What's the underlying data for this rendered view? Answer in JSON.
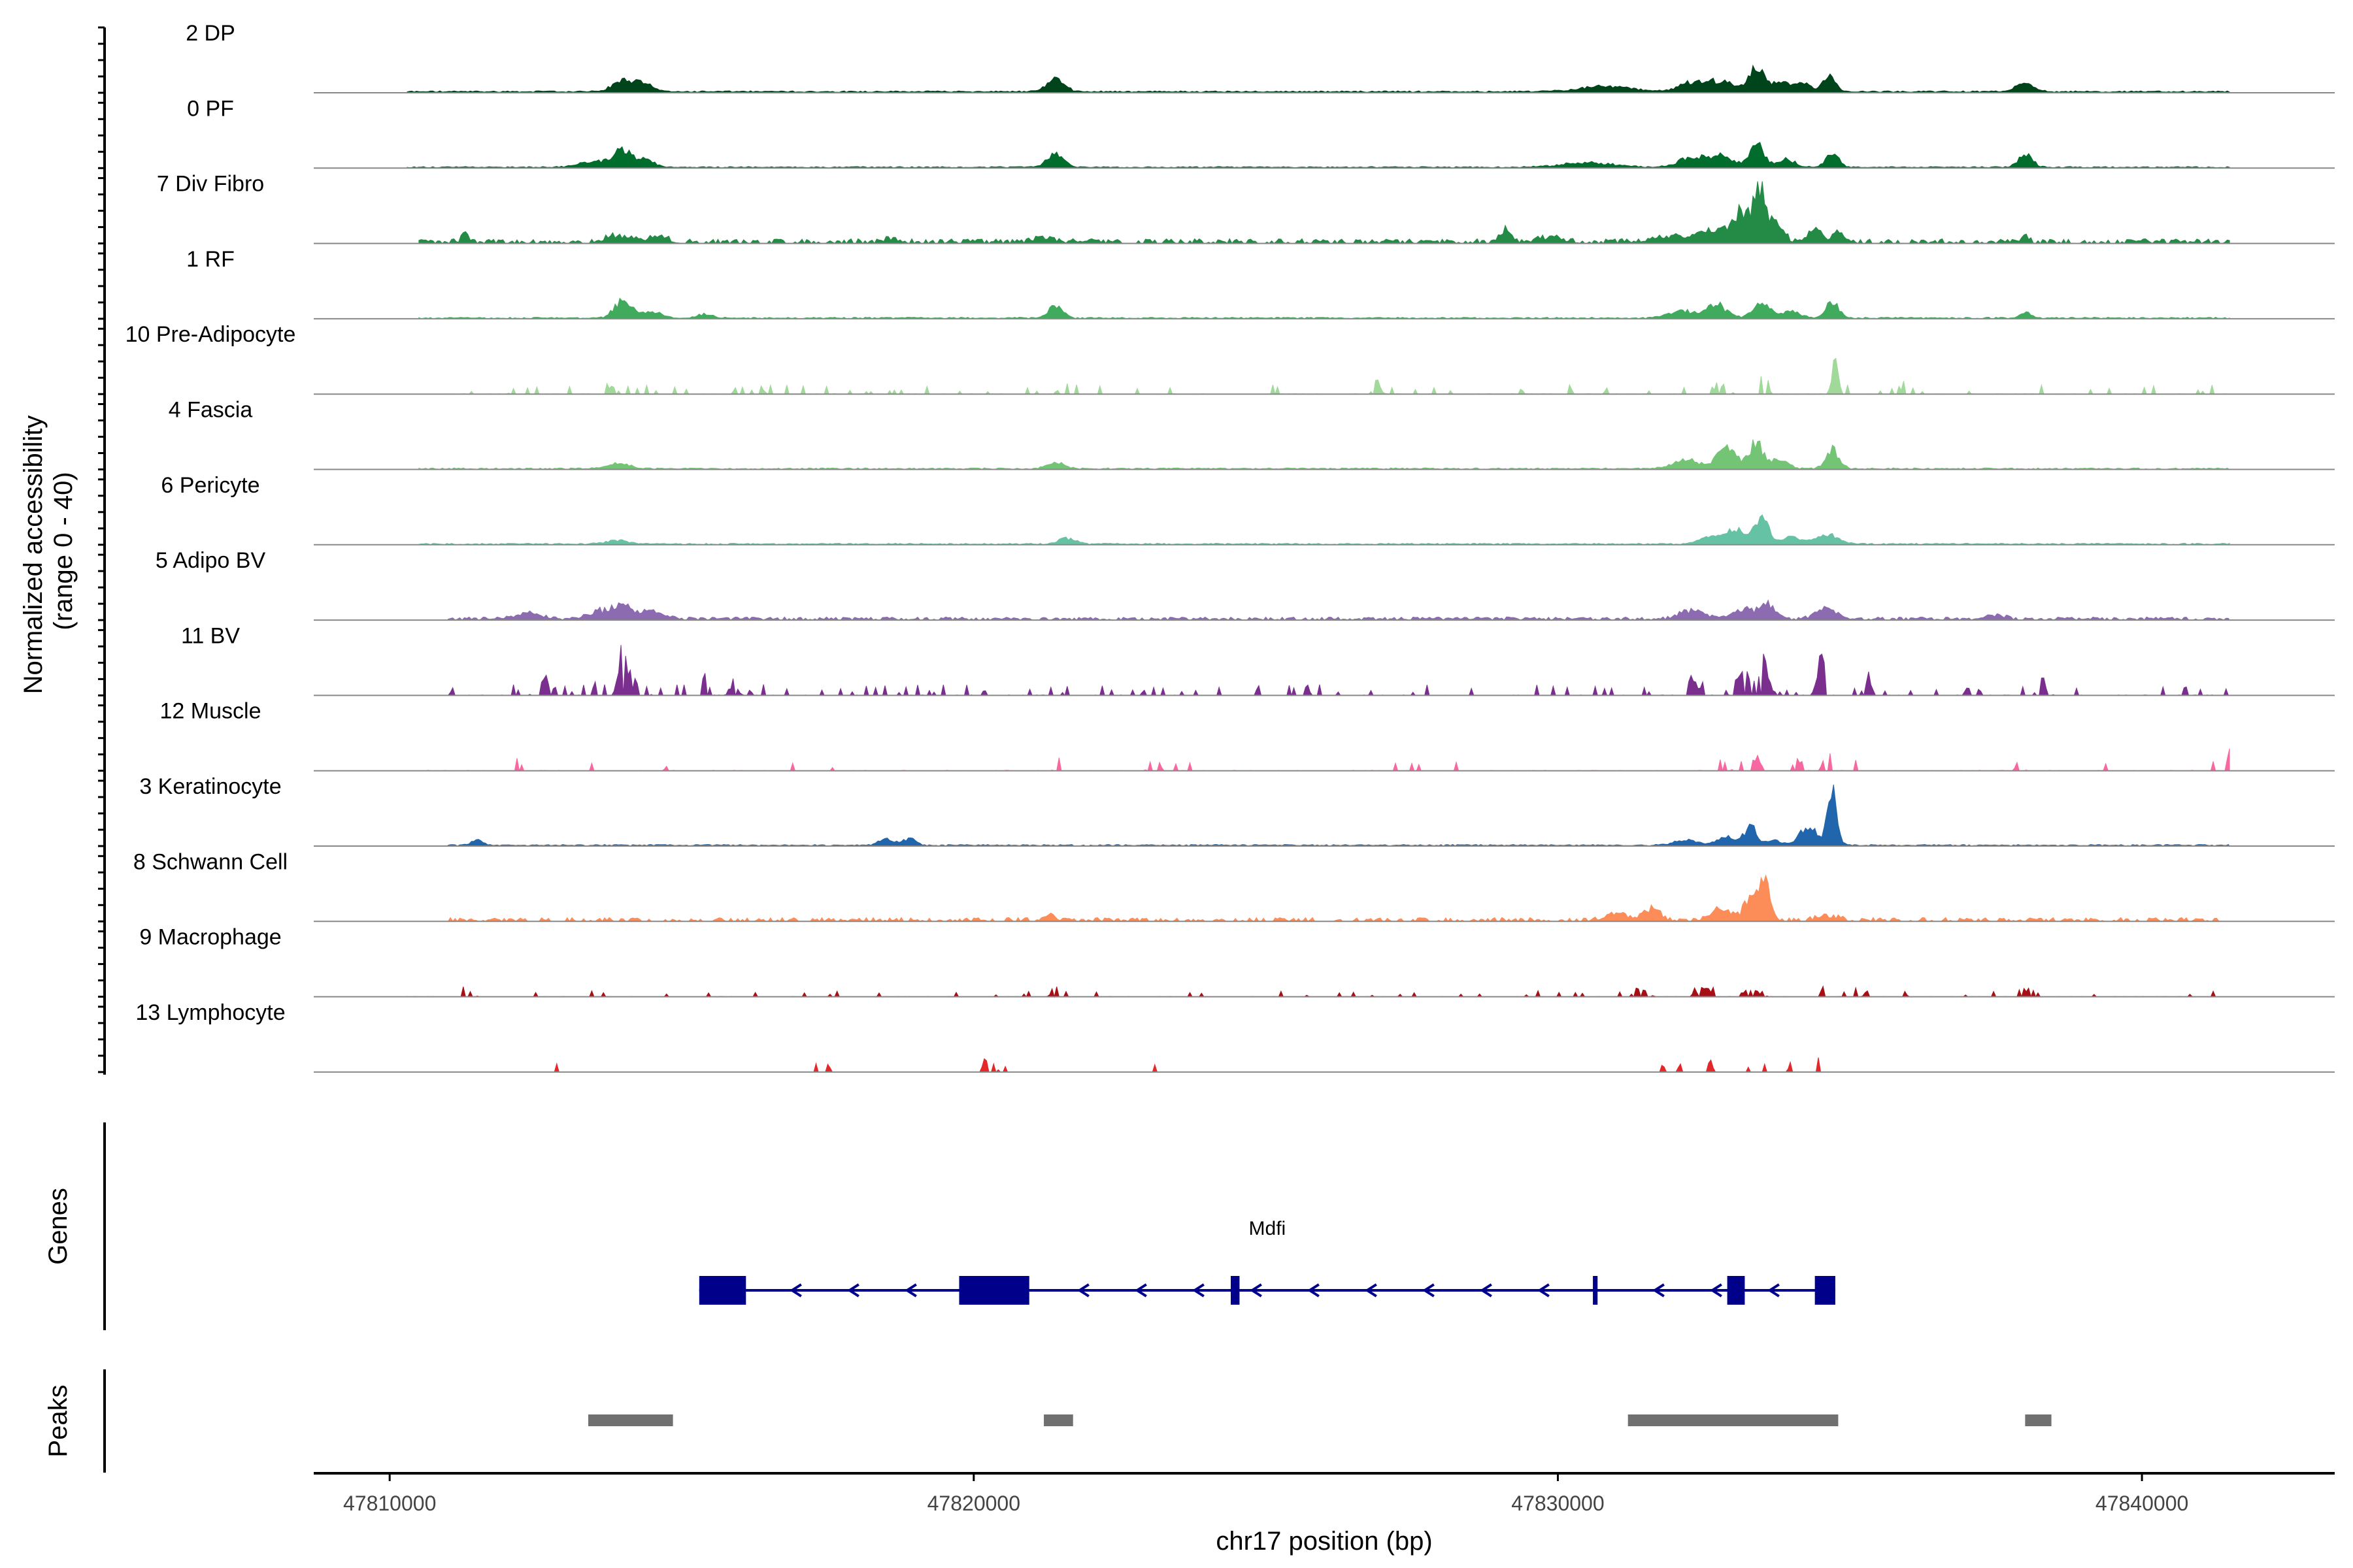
{
  "chart_data": {
    "type": "area",
    "panels": {
      "coverage_ylabel_line1": "Normalized accessibility",
      "coverage_ylabel_line2": "(range 0 - 40)",
      "genes_ylabel": "Genes",
      "peaks_ylabel": "Peaks"
    },
    "xlabel": "chr17 position (bp)",
    "xlim": [
      47808700,
      47843300
    ],
    "x_ticks": [
      47810000,
      47820000,
      47830000,
      47840000
    ],
    "x_tick_labels": [
      "47810000",
      "47820000",
      "47830000",
      "47840000"
    ],
    "ylim": [
      0,
      40
    ],
    "tracks": [
      {
        "name": "2 DP",
        "color": "#00441b",
        "noise": 0.025,
        "sparsity": 0.0,
        "extent": [
          47810300,
          47841500
        ],
        "peaks": [
          [
            47814000,
            0.2,
            170
          ],
          [
            47814350,
            0.12,
            150
          ],
          [
            47821400,
            0.2,
            150
          ],
          [
            47830800,
            0.08,
            450
          ],
          [
            47832300,
            0.14,
            220
          ],
          [
            47832800,
            0.16,
            220
          ],
          [
            47833400,
            0.4,
            120
          ],
          [
            47833800,
            0.14,
            160
          ],
          [
            47834200,
            0.12,
            140
          ],
          [
            47834650,
            0.24,
            110
          ],
          [
            47838000,
            0.13,
            150
          ]
        ]
      },
      {
        "name": "0 PF",
        "color": "#006d2c",
        "noise": 0.02,
        "sparsity": 0.0,
        "extent": [
          47810300,
          47841500
        ],
        "peaks": [
          [
            47813500,
            0.08,
            250
          ],
          [
            47814000,
            0.26,
            170
          ],
          [
            47814400,
            0.1,
            150
          ],
          [
            47821400,
            0.22,
            140
          ],
          [
            47830500,
            0.07,
            450
          ],
          [
            47832300,
            0.16,
            220
          ],
          [
            47832800,
            0.18,
            200
          ],
          [
            47833400,
            0.38,
            120
          ],
          [
            47833900,
            0.12,
            160
          ],
          [
            47834700,
            0.22,
            110
          ],
          [
            47838000,
            0.2,
            120
          ]
        ]
      },
      {
        "name": "7 Div Fibro",
        "color": "#238b45",
        "noise": 0.06,
        "sparsity": 0.35,
        "extent": [
          47810500,
          47841500
        ],
        "peaks": [
          [
            47811300,
            0.12,
            60
          ],
          [
            47813900,
            0.1,
            200
          ],
          [
            47814600,
            0.09,
            150
          ],
          [
            47818600,
            0.06,
            120
          ],
          [
            47821200,
            0.08,
            160
          ],
          [
            47829100,
            0.2,
            90
          ],
          [
            47829900,
            0.08,
            200
          ],
          [
            47831900,
            0.1,
            300
          ],
          [
            47832600,
            0.2,
            200
          ],
          [
            47833100,
            0.44,
            150
          ],
          [
            47833450,
            0.86,
            110
          ],
          [
            47833750,
            0.28,
            120
          ],
          [
            47834400,
            0.2,
            120
          ],
          [
            47834800,
            0.18,
            90
          ],
          [
            47838000,
            0.12,
            60
          ]
        ]
      },
      {
        "name": "1 RF",
        "color": "#41ab5d",
        "noise": 0.02,
        "sparsity": 0.15,
        "extent": [
          47810500,
          47841500
        ],
        "peaks": [
          [
            47814000,
            0.28,
            150
          ],
          [
            47814500,
            0.1,
            150
          ],
          [
            47815400,
            0.06,
            120
          ],
          [
            47821400,
            0.18,
            120
          ],
          [
            47832100,
            0.12,
            200
          ],
          [
            47832700,
            0.22,
            180
          ],
          [
            47833500,
            0.24,
            150
          ],
          [
            47834000,
            0.1,
            150
          ],
          [
            47834700,
            0.25,
            110
          ],
          [
            47838000,
            0.08,
            100
          ]
        ]
      },
      {
        "name": "10 Pre-Adipocyte",
        "color": "#a1d99b",
        "noise": 0.12,
        "sparsity": 0.68,
        "extent": [
          47811000,
          47841500
        ],
        "peaks": [
          [
            47812200,
            0.16,
            70
          ],
          [
            47813800,
            0.1,
            90
          ],
          [
            47816300,
            0.12,
            80
          ],
          [
            47821600,
            0.14,
            60
          ],
          [
            47826900,
            0.24,
            50
          ],
          [
            47832800,
            0.12,
            100
          ],
          [
            47833500,
            0.16,
            80
          ],
          [
            47834750,
            0.42,
            60
          ],
          [
            47835900,
            0.08,
            50
          ]
        ]
      },
      {
        "name": "4 Fascia",
        "color": "#74c476",
        "noise": 0.02,
        "sparsity": 0.12,
        "extent": [
          47810500,
          47841500
        ],
        "peaks": [
          [
            47813900,
            0.08,
            200
          ],
          [
            47821400,
            0.1,
            150
          ],
          [
            47832200,
            0.14,
            220
          ],
          [
            47832900,
            0.3,
            180
          ],
          [
            47833400,
            0.42,
            110
          ],
          [
            47833800,
            0.16,
            140
          ],
          [
            47834700,
            0.32,
            110
          ]
        ]
      },
      {
        "name": "6 Pericyte",
        "color": "#66c2a4",
        "noise": 0.02,
        "sparsity": 0.12,
        "extent": [
          47810500,
          47841500
        ],
        "peaks": [
          [
            47813900,
            0.06,
            200
          ],
          [
            47821600,
            0.1,
            130
          ],
          [
            47832700,
            0.14,
            220
          ],
          [
            47833100,
            0.2,
            180
          ],
          [
            47833500,
            0.4,
            110
          ],
          [
            47834000,
            0.12,
            150
          ],
          [
            47834600,
            0.16,
            180
          ]
        ]
      },
      {
        "name": "5 Adipo BV",
        "color": "#8c6bb1",
        "noise": 0.04,
        "sparsity": 0.25,
        "extent": [
          47811000,
          47841500
        ],
        "peaks": [
          [
            47812400,
            0.1,
            200
          ],
          [
            47813600,
            0.12,
            200
          ],
          [
            47814000,
            0.2,
            160
          ],
          [
            47814500,
            0.12,
            180
          ],
          [
            47832300,
            0.14,
            200
          ],
          [
            47833200,
            0.14,
            200
          ],
          [
            47833600,
            0.24,
            130
          ],
          [
            47834600,
            0.16,
            180
          ],
          [
            47837500,
            0.06,
            150
          ]
        ]
      },
      {
        "name": "11 BV",
        "color": "#7a2f8f",
        "noise": 0.14,
        "sparsity": 0.62,
        "extent": [
          47811000,
          47841500
        ],
        "peaks": [
          [
            47812600,
            0.26,
            80
          ],
          [
            47813600,
            0.3,
            90
          ],
          [
            47814000,
            0.78,
            70
          ],
          [
            47814300,
            0.3,
            70
          ],
          [
            47815400,
            0.2,
            60
          ],
          [
            47815900,
            0.16,
            60
          ],
          [
            47832300,
            0.2,
            120
          ],
          [
            47833200,
            0.26,
            110
          ],
          [
            47833500,
            0.44,
            100
          ],
          [
            47834500,
            0.56,
            60
          ],
          [
            47835300,
            0.2,
            80
          ],
          [
            47838300,
            0.18,
            80
          ],
          [
            47841500,
            0.18,
            60
          ]
        ]
      },
      {
        "name": "12 Muscle",
        "color": "#f768a1",
        "noise": 0.14,
        "sparsity": 0.84,
        "extent": [
          47810500,
          47841500
        ],
        "peaks": [
          [
            47812200,
            0.3,
            40
          ],
          [
            47814600,
            0.26,
            40
          ],
          [
            47821500,
            0.3,
            60
          ],
          [
            47822200,
            0.28,
            50
          ],
          [
            47823100,
            0.32,
            60
          ],
          [
            47832800,
            0.16,
            90
          ],
          [
            47833400,
            0.2,
            70
          ],
          [
            47834100,
            0.2,
            60
          ],
          [
            47834600,
            0.22,
            60
          ],
          [
            47837900,
            0.18,
            50
          ],
          [
            47841500,
            0.3,
            50
          ]
        ]
      },
      {
        "name": "3 Keratinocyte",
        "color": "#2166ac",
        "noise": 0.02,
        "sparsity": 0.05,
        "extent": [
          47811000,
          47841500
        ],
        "peaks": [
          [
            47811500,
            0.08,
            100
          ],
          [
            47818500,
            0.1,
            120
          ],
          [
            47818900,
            0.1,
            120
          ],
          [
            47832200,
            0.08,
            200
          ],
          [
            47832900,
            0.14,
            160
          ],
          [
            47833300,
            0.3,
            100
          ],
          [
            47833700,
            0.08,
            120
          ],
          [
            47834200,
            0.2,
            110
          ],
          [
            47834700,
            0.88,
            80
          ],
          [
            47834400,
            0.18,
            100
          ]
        ]
      },
      {
        "name": "8 Schwann Cell",
        "color": "#fc8d59",
        "noise": 0.05,
        "sparsity": 0.45,
        "extent": [
          47811000,
          47841500
        ],
        "peaks": [
          [
            47821300,
            0.12,
            90
          ],
          [
            47831000,
            0.1,
            180
          ],
          [
            47831600,
            0.2,
            140
          ],
          [
            47832800,
            0.16,
            180
          ],
          [
            47833300,
            0.4,
            100
          ],
          [
            47833550,
            0.7,
            90
          ],
          [
            47834600,
            0.08,
            160
          ]
        ]
      },
      {
        "name": "9 Macrophage",
        "color": "#a50f15",
        "noise": 0.08,
        "sparsity": 0.73,
        "extent": [
          47810300,
          47841500
        ],
        "peaks": [
          [
            47811300,
            0.16,
            80
          ],
          [
            47821400,
            0.22,
            50
          ],
          [
            47831400,
            0.14,
            100
          ],
          [
            47832500,
            0.14,
            120
          ],
          [
            47833300,
            0.12,
            120
          ],
          [
            47834600,
            0.24,
            70
          ],
          [
            47835100,
            0.16,
            50
          ],
          [
            47838100,
            0.12,
            100
          ]
        ]
      },
      {
        "name": "13 Lymphocyte",
        "color": "#e3272a",
        "noise": 0.0,
        "sparsity": 1.0,
        "extent": [
          47810300,
          47841500
        ],
        "peaks": [
          [
            47812900,
            0.22,
            40
          ],
          [
            47817300,
            0.12,
            40
          ],
          [
            47817500,
            0.12,
            40
          ],
          [
            47820200,
            0.24,
            40
          ],
          [
            47820350,
            0.16,
            40
          ],
          [
            47820500,
            0.12,
            40
          ],
          [
            47823100,
            0.1,
            40
          ],
          [
            47823600,
            0.1,
            40
          ],
          [
            47831800,
            0.12,
            40
          ],
          [
            47832100,
            0.14,
            40
          ],
          [
            47832600,
            0.22,
            40
          ],
          [
            47833200,
            0.2,
            40
          ],
          [
            47833500,
            0.18,
            40
          ],
          [
            47834000,
            0.2,
            40
          ],
          [
            47834500,
            0.34,
            40
          ],
          [
            47834700,
            0.2,
            40
          ]
        ]
      }
    ],
    "gene": {
      "name": "Mdfi",
      "strand": "-",
      "color": "#00008b",
      "start": 47815300,
      "end": 47834750,
      "exons": [
        [
          47815300,
          47816100
        ],
        [
          47819750,
          47820950
        ],
        [
          47824400,
          47824550
        ],
        [
          47830600,
          47830680
        ],
        [
          47832900,
          47833200
        ],
        [
          47834400,
          47834750
        ]
      ]
    },
    "peaks_track": {
      "color": "#707070",
      "regions": [
        [
          47813400,
          47814850
        ],
        [
          47821200,
          47821700
        ],
        [
          47831200,
          47834800
        ],
        [
          47838000,
          47838450
        ]
      ]
    }
  }
}
